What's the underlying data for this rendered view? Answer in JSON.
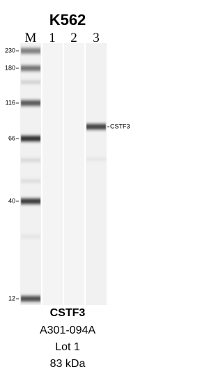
{
  "title": "K562",
  "lanes": [
    "M",
    "1",
    "2",
    "3"
  ],
  "markers": [
    "230",
    "180",
    "116",
    "66",
    "40",
    "12"
  ],
  "band_label": "CSTF3",
  "footer": [
    "CSTF3",
    "A301-094A",
    "Lot 1",
    "83 kDa"
  ]
}
